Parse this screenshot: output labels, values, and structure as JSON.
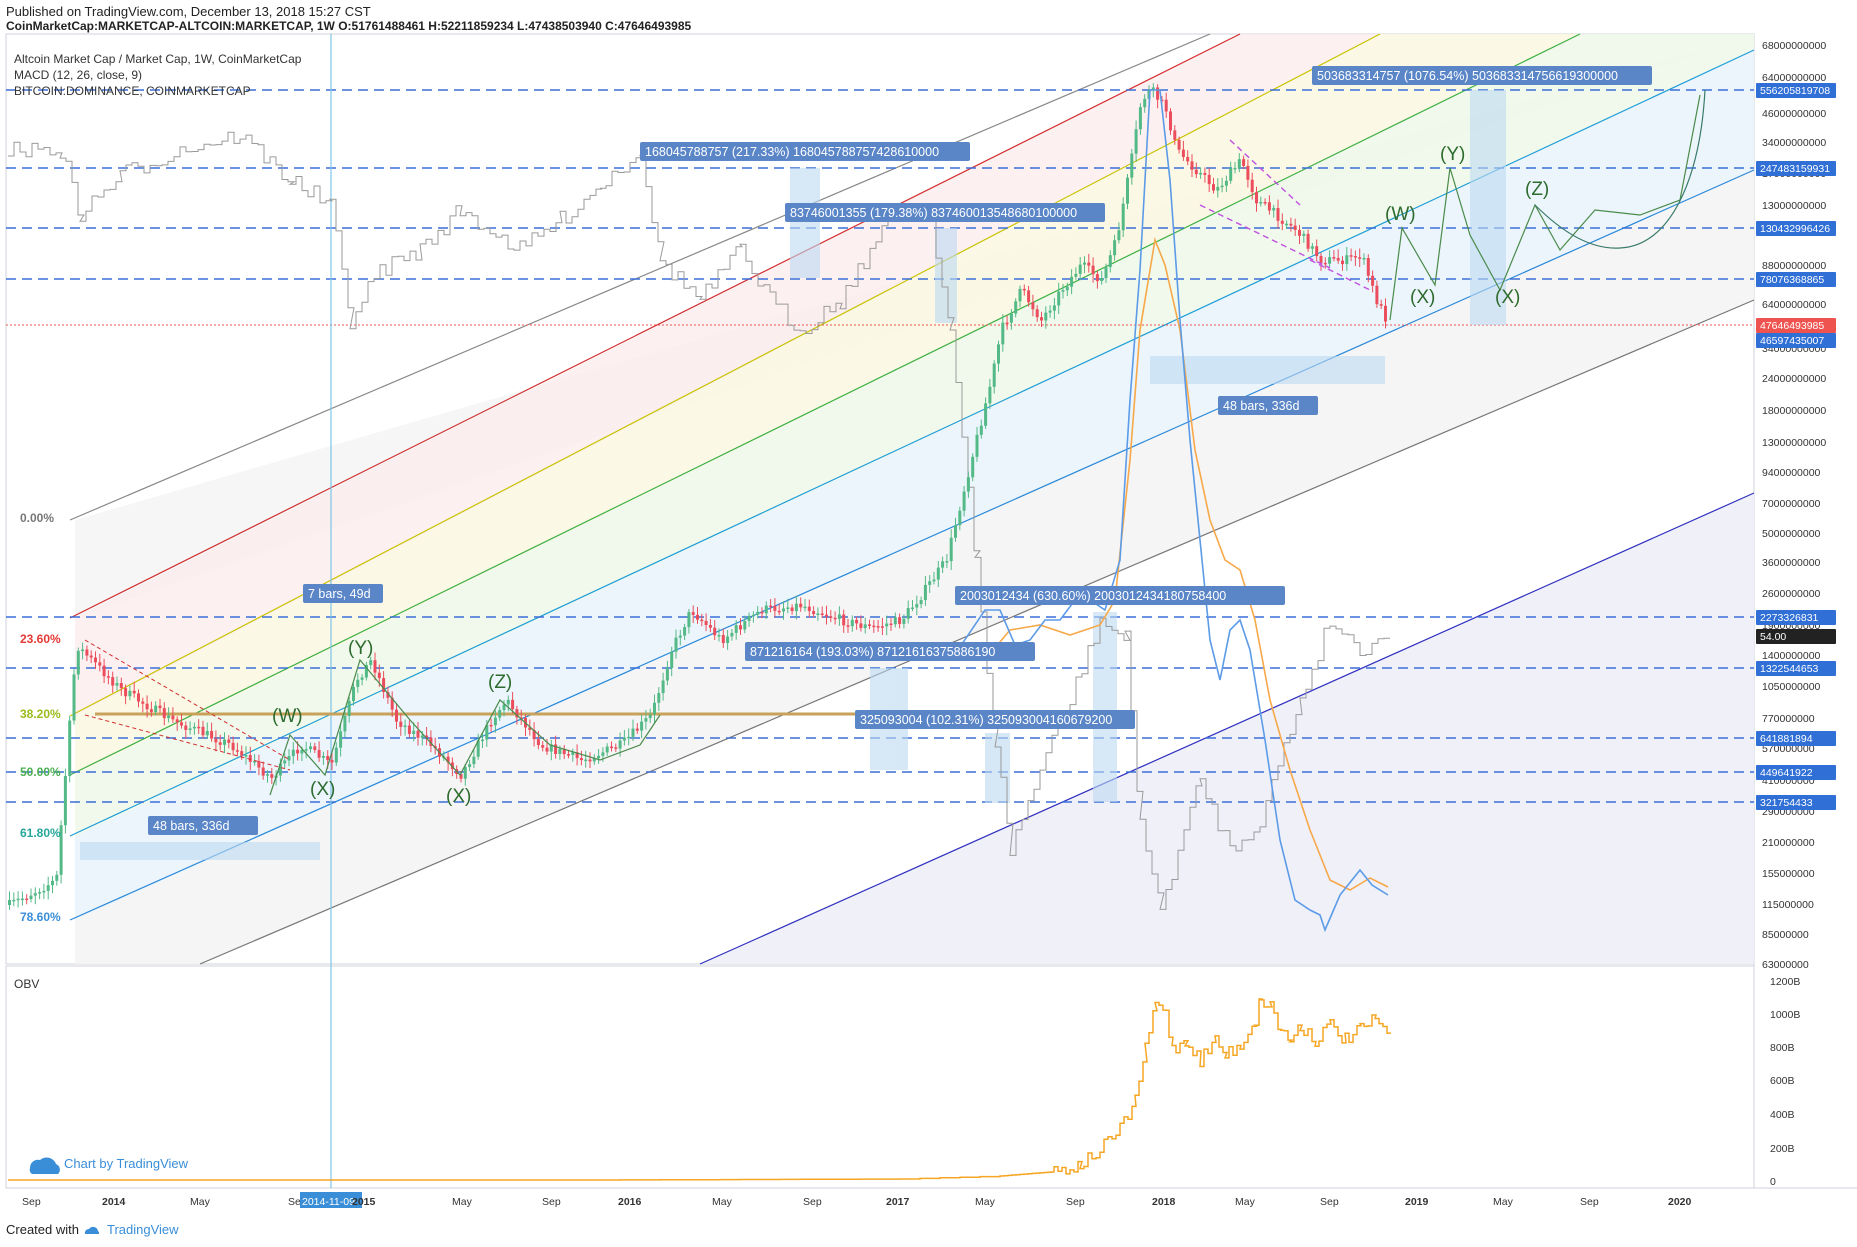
{
  "header": {
    "published": "Published on TradingView.com, December 13, 2018 15:27 CST",
    "symbol_line": "CoinMarketCap:MARKETCAP-ALTCOIN:MARKETCAP, 1W  O:51761488461 H:52211859234 L:47438503940 C:47646493985"
  },
  "legend": {
    "line1": "Altcoin Market Cap / Market Cap, 1W, CoinMarketCap",
    "line2": "MACD (12, 26, close, 9)",
    "line3": "BITCOIN:DOMINANCE, COINMARKETCAP"
  },
  "obv_label": "OBV",
  "watermark": "Chart by TradingView",
  "footer": {
    "created": "Created with",
    "brand": "TradingView"
  },
  "colors": {
    "candle_up": "#53b987",
    "candle_down": "#eb4d5c",
    "hline": "#3a6fd8",
    "price_badge": "#2f6fd6",
    "last_price": "#ef5350",
    "macd": "#5b9be8",
    "signal": "#f7a84a",
    "obv": "#f5a623",
    "fib_line": "#c8a15a",
    "dominance": "#999999"
  },
  "chart_data": {
    "type": "candlestick",
    "scale": "log",
    "price_axis_labels": [
      "68000000000",
      "64000000000",
      "46000000000",
      "34000000000",
      "17000000000",
      "13000000000",
      "88000000000",
      "64000000000",
      "34000000000",
      "24000000000",
      "18000000000",
      "13000000000",
      "9400000000",
      "7000000000",
      "5000000000",
      "3600000000",
      "2600000000",
      "1900000000",
      "1400000000",
      "1050000000",
      "770000000",
      "570000000",
      "410000000",
      "290000000",
      "210000000",
      "155000000",
      "115000000",
      "85000000",
      "63000000"
    ],
    "price_badges": [
      "556205819708",
      "247483159931",
      "130432996426",
      "78076368865",
      "47646493985",
      "46597435007",
      "2273326831",
      "54.00",
      "1322544653",
      "641881894",
      "449641922",
      "321754433"
    ],
    "obv_axis_labels": [
      "1200B",
      "1000B",
      "800B",
      "600B",
      "400B",
      "200B",
      "0"
    ],
    "time_labels": [
      "Sep",
      "2014",
      "May",
      "Sep",
      "2014-11-09",
      "2015",
      "May",
      "Sep",
      "2016",
      "May",
      "Sep",
      "2017",
      "May",
      "Sep",
      "2018",
      "May",
      "Sep",
      "2019",
      "May",
      "Sep",
      "2020"
    ],
    "fib_levels": [
      {
        "label": "0.00%",
        "color": "#777777"
      },
      {
        "label": "23.60%",
        "color": "#e53935"
      },
      {
        "label": "38.20%",
        "color": "#9bbb1e"
      },
      {
        "label": "50.00%",
        "color": "#4caf50"
      },
      {
        "label": "61.80%",
        "color": "#26a69a"
      },
      {
        "label": "78.60%",
        "color": "#3a8ed8"
      }
    ],
    "wave_labels": [
      "(W)",
      "(X)",
      "(Y)",
      "(X)",
      "(Z)",
      "(W)",
      "(X)",
      "(Y)",
      "(X)",
      "(Z)"
    ],
    "measure_labels": [
      "168045788757 (217.33%) 168045788757428610000",
      "83746001355 (179.38%) 837460013548680100000",
      "503683314757 (1076.54%) 503683314756619300000",
      "2003012434 (630.60%) 2003012434180758400",
      "871216164 (193.03%) 87121616375886190",
      "325093004 (102.31%) 325093004160679200",
      "48 bars, 336d",
      "48 bars, 336d",
      "7 bars, 49d"
    ],
    "ohlc_last": {
      "open": "51761488461",
      "high": "52211859234",
      "low": "47438503940",
      "close": "47646493985"
    },
    "obv_peak": "1200B"
  }
}
